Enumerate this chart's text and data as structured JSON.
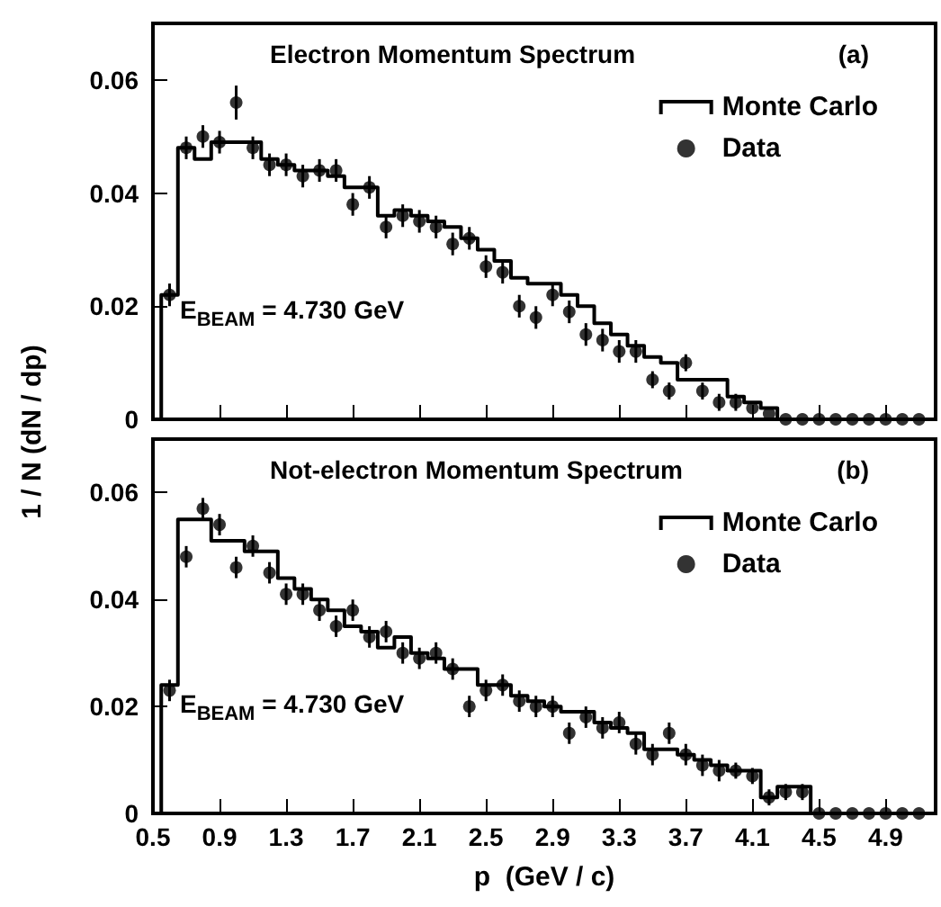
{
  "chart_data": [
    {
      "type": "step",
      "title": "Electron Momentum Spectrum",
      "ylabel": "1 / N (dN / dp)",
      "annotations": [
        "E$_{BEAM}$ = 4.730 GeV",
        "(a)"
      ],
      "xlim": [
        0.5,
        5.2
      ],
      "xticks": [
        0.5,
        0.9,
        1.3,
        1.7,
        2.1,
        2.5,
        2.9,
        3.3,
        3.7,
        4.1,
        4.5,
        4.9
      ],
      "ylim": [
        0,
        0.07
      ],
      "yticks": [
        0,
        0.02,
        0.04,
        0.06
      ],
      "tick_labels": "y",
      "grid": false,
      "legend": "top right",
      "series": [
        {
          "name": "Monte Carlo",
          "color": "#000000",
          "x": [
            0.5,
            0.55,
            0.65,
            0.75,
            0.85,
            0.95,
            1.05,
            1.15,
            1.25,
            1.35,
            1.45,
            1.55,
            1.65,
            1.75,
            1.85,
            1.95,
            2.05,
            2.15,
            2.25,
            2.35,
            2.45,
            2.55,
            2.65,
            2.75,
            2.85,
            2.95,
            3.05,
            3.15,
            3.25,
            3.35,
            3.45,
            3.55,
            3.65,
            3.75,
            3.85,
            3.95,
            4.05,
            4.15,
            4.25,
            4.35,
            4.45,
            4.55,
            4.65,
            4.75,
            4.85,
            4.95,
            5.05,
            5.15
          ],
          "values": [
            0,
            0.022,
            0.048,
            0.046,
            0.049,
            0.049,
            0.049,
            0.046,
            0.045,
            0.044,
            0.044,
            0.043,
            0.041,
            0.041,
            0.036,
            0.037,
            0.036,
            0.035,
            0.034,
            0.032,
            0.03,
            0.028,
            0.025,
            0.024,
            0.024,
            0.022,
            0.02,
            0.017,
            0.015,
            0.013,
            0.011,
            0.01,
            0.007,
            0.007,
            0.007,
            0.004,
            0.003,
            0.002,
            0,
            0,
            0,
            0,
            0,
            0,
            0,
            0,
            0,
            0
          ]
        },
        {
          "name": "Data",
          "type": "scatter",
          "marker": "circle",
          "color": "#000000",
          "x": [
            0.6,
            0.7,
            0.8,
            0.9,
            1.0,
            1.1,
            1.2,
            1.3,
            1.4,
            1.5,
            1.6,
            1.7,
            1.8,
            1.9,
            2.0,
            2.1,
            2.2,
            2.3,
            2.4,
            2.5,
            2.6,
            2.7,
            2.8,
            2.9,
            3.0,
            3.1,
            3.2,
            3.3,
            3.4,
            3.5,
            3.6,
            3.7,
            3.8,
            3.9,
            4.0,
            4.1,
            4.2,
            4.3,
            4.4,
            4.5,
            4.6,
            4.7,
            4.8,
            4.9,
            5.0,
            5.1
          ],
          "values": [
            0.022,
            0.048,
            0.05,
            0.049,
            0.056,
            0.048,
            0.045,
            0.045,
            0.043,
            0.044,
            0.044,
            0.038,
            0.041,
            0.034,
            0.036,
            0.035,
            0.034,
            0.031,
            0.032,
            0.027,
            0.026,
            0.02,
            0.018,
            0.022,
            0.019,
            0.015,
            0.014,
            0.012,
            0.012,
            0.007,
            0.005,
            0.01,
            0.005,
            0.003,
            0.003,
            0.002,
            0.001,
            0,
            0,
            0,
            0,
            0,
            0,
            0,
            0,
            0
          ],
          "errors": [
            0.002,
            0.002,
            0.002,
            0.002,
            0.003,
            0.002,
            0.002,
            0.002,
            0.002,
            0.002,
            0.002,
            0.002,
            0.002,
            0.002,
            0.002,
            0.002,
            0.002,
            0.002,
            0.002,
            0.002,
            0.002,
            0.002,
            0.002,
            0.002,
            0.002,
            0.002,
            0.002,
            0.002,
            0.002,
            0.0015,
            0.0015,
            0.0015,
            0.0015,
            0.0015,
            0.0015,
            null,
            null,
            null,
            null,
            null,
            null,
            null,
            null,
            null,
            null,
            null
          ]
        }
      ]
    },
    {
      "type": "step",
      "title": "Not-electron Momentum Spectrum",
      "xlabel": "p  (GeV / c)",
      "annotations": [
        "E$_{BEAM}$ = 4.730 GeV",
        "(b)"
      ],
      "xlim": [
        0.5,
        5.2
      ],
      "xticks": [
        0.5,
        0.9,
        1.3,
        1.7,
        2.1,
        2.5,
        2.9,
        3.3,
        3.7,
        4.1,
        4.5,
        4.9
      ],
      "ylim": [
        0,
        0.07
      ],
      "yticks": [
        0,
        0.02,
        0.04,
        0.06
      ],
      "grid": false,
      "legend": "top right",
      "series": [
        {
          "name": "Monte Carlo",
          "color": "#000000",
          "x": [
            0.5,
            0.55,
            0.65,
            0.75,
            0.85,
            0.95,
            1.05,
            1.15,
            1.25,
            1.35,
            1.45,
            1.55,
            1.65,
            1.75,
            1.85,
            1.95,
            2.05,
            2.15,
            2.25,
            2.35,
            2.45,
            2.55,
            2.65,
            2.75,
            2.85,
            2.95,
            3.05,
            3.15,
            3.25,
            3.35,
            3.45,
            3.55,
            3.65,
            3.75,
            3.85,
            3.95,
            4.05,
            4.15,
            4.25,
            4.35,
            4.45,
            4.55,
            4.65,
            4.75,
            4.85,
            4.95,
            5.05,
            5.15
          ],
          "values": [
            0,
            0.024,
            0.055,
            0.055,
            0.051,
            0.051,
            0.049,
            0.049,
            0.044,
            0.042,
            0.04,
            0.038,
            0.035,
            0.034,
            0.031,
            0.033,
            0.03,
            0.029,
            0.027,
            0.027,
            0.024,
            0.024,
            0.022,
            0.021,
            0.02,
            0.019,
            0.019,
            0.017,
            0.016,
            0.015,
            0.012,
            0.012,
            0.011,
            0.01,
            0.009,
            0.008,
            0.008,
            0.003,
            0.005,
            0.005,
            0,
            0,
            0,
            0,
            0,
            0,
            0,
            0
          ]
        },
        {
          "name": "Data",
          "type": "scatter",
          "marker": "circle",
          "color": "#000000",
          "x": [
            0.6,
            0.7,
            0.8,
            0.9,
            1.0,
            1.1,
            1.2,
            1.3,
            1.4,
            1.5,
            1.6,
            1.7,
            1.8,
            1.9,
            2.0,
            2.1,
            2.2,
            2.3,
            2.4,
            2.5,
            2.6,
            2.7,
            2.8,
            2.9,
            3.0,
            3.1,
            3.2,
            3.3,
            3.4,
            3.5,
            3.6,
            3.7,
            3.8,
            3.9,
            4.0,
            4.1,
            4.2,
            4.3,
            4.4,
            4.5,
            4.6,
            4.7,
            4.8,
            4.9,
            5.0,
            5.1
          ],
          "values": [
            0.023,
            0.048,
            0.057,
            0.054,
            0.046,
            0.05,
            0.045,
            0.041,
            0.041,
            0.038,
            0.035,
            0.038,
            0.033,
            0.034,
            0.03,
            0.029,
            0.03,
            0.027,
            0.02,
            0.023,
            0.024,
            0.021,
            0.02,
            0.02,
            0.015,
            0.018,
            0.016,
            0.017,
            0.013,
            0.011,
            0.015,
            0.011,
            0.009,
            0.008,
            0.008,
            0.007,
            0.003,
            0.004,
            0.004,
            0,
            0,
            0,
            0,
            0,
            0,
            0
          ],
          "errors": [
            0.002,
            0.002,
            0.002,
            0.002,
            0.002,
            0.002,
            0.002,
            0.002,
            0.002,
            0.002,
            0.002,
            0.002,
            0.002,
            0.002,
            0.002,
            0.002,
            0.002,
            0.002,
            0.002,
            0.002,
            0.002,
            0.002,
            0.002,
            0.002,
            0.002,
            0.002,
            0.002,
            0.002,
            0.002,
            0.002,
            0.002,
            0.002,
            0.002,
            0.002,
            0.0015,
            0.0015,
            0.0015,
            0.0015,
            0.0015,
            null,
            null,
            null,
            null,
            null,
            null,
            null
          ]
        }
      ]
    }
  ]
}
